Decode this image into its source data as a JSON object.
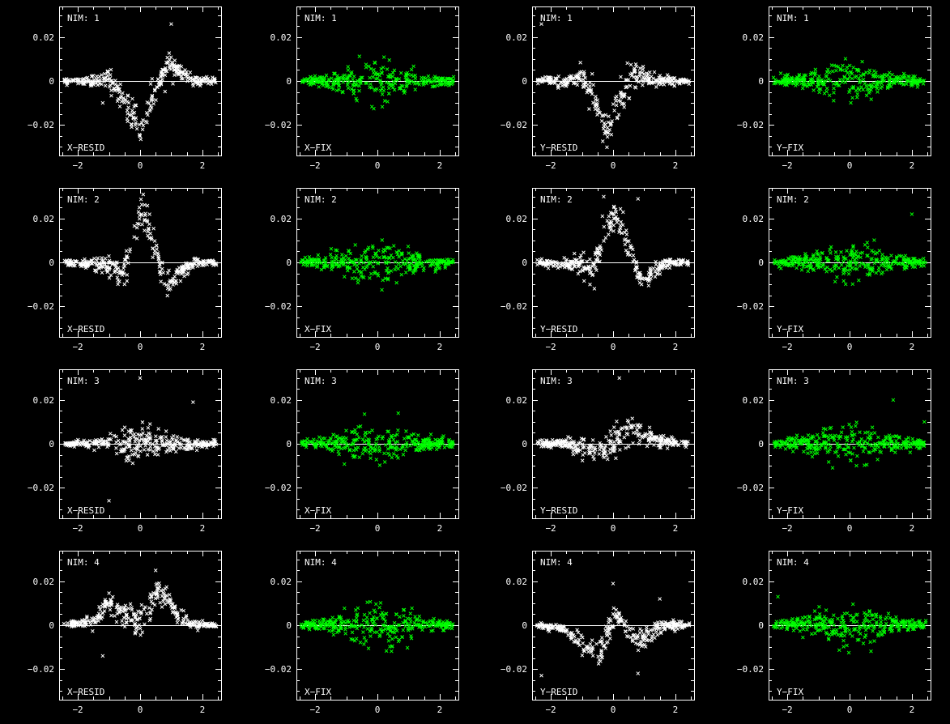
{
  "chart_data": {
    "type": "scatter",
    "xlim": [
      -2.6,
      2.6
    ],
    "ylim": [
      -0.034,
      0.034
    ],
    "x_ticks": [
      -2,
      0,
      2
    ],
    "y_ticks": [
      -0.02,
      0,
      0.02
    ],
    "x_tick_labels": [
      "−2",
      "0",
      "2"
    ],
    "y_tick_labels": [
      "−0.02",
      "0",
      "0.02"
    ],
    "grid": false,
    "zero_line": true,
    "marker": "x",
    "colors": {
      "resid": "#ffffff",
      "fix": "#00ff00",
      "background": "#000000"
    },
    "rows": [
      {
        "nim_label": "NIM: 1"
      },
      {
        "nim_label": "NIM: 2"
      },
      {
        "nim_label": "NIM: 3"
      },
      {
        "nim_label": "NIM: 4"
      }
    ],
    "columns": [
      {
        "label": "X−RESID",
        "kind": "resid",
        "axis": "x"
      },
      {
        "label": "X−FIX",
        "kind": "fix",
        "axis": "x"
      },
      {
        "label": "Y−RESID",
        "kind": "resid",
        "axis": "y"
      },
      {
        "label": "Y−FIX",
        "kind": "fix",
        "axis": "y"
      }
    ],
    "trends": {
      "x": [
        [
          [
            -2.5,
            0.0
          ],
          [
            -1.5,
            0.0
          ],
          [
            -1.0,
            0.002
          ],
          [
            -0.6,
            -0.006
          ],
          [
            -0.2,
            -0.016
          ],
          [
            0.0,
            -0.022
          ],
          [
            0.2,
            -0.016
          ],
          [
            0.5,
            -0.004
          ],
          [
            0.8,
            0.006
          ],
          [
            1.0,
            0.008
          ],
          [
            1.3,
            0.004
          ],
          [
            1.7,
            0.0
          ],
          [
            2.5,
            0.0
          ]
        ],
        [
          [
            -2.5,
            0.0
          ],
          [
            -1.0,
            -0.001
          ],
          [
            -0.7,
            -0.006
          ],
          [
            -0.4,
            0.002
          ],
          [
            -0.2,
            0.012
          ],
          [
            0.0,
            0.024
          ],
          [
            0.2,
            0.02
          ],
          [
            0.5,
            0.004
          ],
          [
            0.8,
            -0.008
          ],
          [
            1.0,
            -0.009
          ],
          [
            1.3,
            -0.004
          ],
          [
            1.8,
            0.0
          ],
          [
            2.5,
            0.0
          ]
        ],
        [
          [
            -2.5,
            0.0
          ],
          [
            2.5,
            0.0
          ]
        ],
        [
          [
            -2.5,
            0.0
          ],
          [
            -1.5,
            0.002
          ],
          [
            -1.0,
            0.01
          ],
          [
            -0.6,
            0.006
          ],
          [
            -0.2,
            0.002
          ],
          [
            0.0,
            0.0
          ],
          [
            0.3,
            0.008
          ],
          [
            0.6,
            0.016
          ],
          [
            0.9,
            0.012
          ],
          [
            1.2,
            0.004
          ],
          [
            1.6,
            0.0
          ],
          [
            2.5,
            0.0
          ]
        ]
      ],
      "y": [
        [
          [
            -2.5,
            0.0
          ],
          [
            -1.5,
            0.0
          ],
          [
            -1.0,
            0.002
          ],
          [
            -0.7,
            -0.004
          ],
          [
            -0.4,
            -0.016
          ],
          [
            -0.2,
            -0.024
          ],
          [
            0.0,
            -0.016
          ],
          [
            0.3,
            -0.006
          ],
          [
            0.6,
            0.002
          ],
          [
            1.0,
            0.002
          ],
          [
            1.5,
            0.0
          ],
          [
            2.5,
            0.0
          ]
        ],
        [
          [
            -2.5,
            0.0
          ],
          [
            -1.0,
            -0.001
          ],
          [
            -0.7,
            -0.004
          ],
          [
            -0.4,
            0.006
          ],
          [
            -0.2,
            0.016
          ],
          [
            0.0,
            0.022
          ],
          [
            0.2,
            0.02
          ],
          [
            0.5,
            0.008
          ],
          [
            0.8,
            -0.006
          ],
          [
            1.0,
            -0.008
          ],
          [
            1.3,
            -0.004
          ],
          [
            1.8,
            0.0
          ],
          [
            2.5,
            0.0
          ]
        ],
        [
          [
            -2.5,
            0.0
          ],
          [
            -1.5,
            0.0
          ],
          [
            -0.8,
            -0.002
          ],
          [
            -0.3,
            -0.002
          ],
          [
            0.2,
            0.002
          ],
          [
            0.6,
            0.006
          ],
          [
            0.9,
            0.005
          ],
          [
            1.3,
            0.002
          ],
          [
            2.5,
            0.0
          ]
        ],
        [
          [
            -2.5,
            0.0
          ],
          [
            -1.5,
            -0.002
          ],
          [
            -0.9,
            -0.01
          ],
          [
            -0.4,
            -0.012
          ],
          [
            -0.1,
            0.0
          ],
          [
            0.1,
            0.006
          ],
          [
            0.4,
            -0.002
          ],
          [
            0.8,
            -0.008
          ],
          [
            1.2,
            -0.004
          ],
          [
            1.6,
            0.0
          ],
          [
            2.5,
            0.0
          ]
        ]
      ]
    },
    "scatter_scale": {
      "resid": 0.0016,
      "fix": 0.0022
    },
    "points_per_panel": 320,
    "outliers": [
      [
        [
          [
            1.0,
            0.026
          ],
          [
            -1.2,
            -0.01
          ]
        ],
        [],
        [
          [
            -2.3,
            0.026
          ]
        ],
        []
      ],
      [
        [
          [
            0.1,
            0.031
          ],
          [
            -0.5,
            -0.01
          ]
        ],
        [],
        [
          [
            -0.3,
            0.03
          ],
          [
            -0.6,
            -0.012
          ],
          [
            0.8,
            0.029
          ]
        ],
        [
          [
            2.0,
            0.022
          ]
        ]
      ],
      [
        [
          [
            0.0,
            0.03
          ],
          [
            1.7,
            0.019
          ],
          [
            -1.0,
            -0.026
          ]
        ],
        [],
        [
          [
            0.2,
            0.03
          ]
        ],
        [
          [
            1.4,
            0.02
          ],
          [
            2.4,
            0.01
          ]
        ]
      ],
      [
        [
          [
            -1.2,
            -0.014
          ],
          [
            0.5,
            0.025
          ]
        ],
        [],
        [
          [
            -2.3,
            -0.023
          ],
          [
            0.0,
            0.019
          ],
          [
            0.8,
            -0.022
          ],
          [
            1.5,
            0.012
          ]
        ],
        [
          [
            -2.3,
            0.013
          ]
        ]
      ]
    ]
  }
}
